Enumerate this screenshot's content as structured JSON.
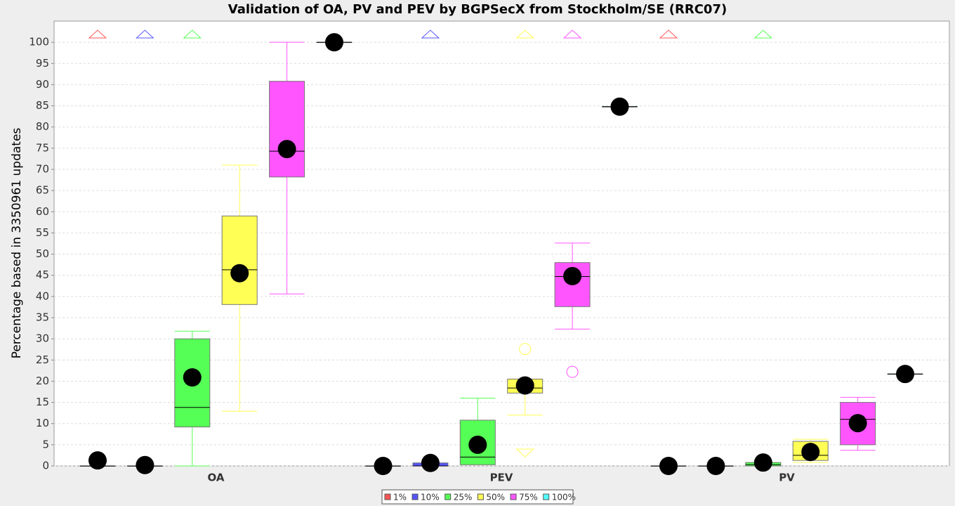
{
  "chart_data": {
    "type": "box",
    "title": "Validation of OA, PV and PEV by BGPSecX from Stockholm/SE (RRC07)",
    "y_label": "Percentage based in 3350961 updates",
    "categories": [
      "OA",
      "PEV",
      "PV"
    ],
    "ylim": [
      0,
      105
    ],
    "yticks": [
      0,
      5,
      10,
      15,
      20,
      25,
      30,
      35,
      40,
      45,
      50,
      55,
      60,
      65,
      70,
      75,
      80,
      85,
      90,
      95,
      100
    ],
    "grid": true,
    "legend": "bottom",
    "series": [
      {
        "name": "1%",
        "color": "#ff5555",
        "boxes": [
          {
            "min": 0,
            "q1": 0,
            "median": 0,
            "q3": 0,
            "max": 0,
            "mean": 1.3,
            "outliers": [],
            "farout": [
              "up"
            ]
          },
          {
            "min": 0,
            "q1": 0,
            "median": 0,
            "q3": 0,
            "max": 0,
            "mean": 0,
            "outliers": [],
            "farout": []
          },
          {
            "min": 0,
            "q1": 0,
            "median": 0,
            "q3": 0,
            "max": 0,
            "mean": 0,
            "outliers": [],
            "farout": [
              "up"
            ]
          }
        ]
      },
      {
        "name": "10%",
        "color": "#5555ff",
        "boxes": [
          {
            "min": 0,
            "q1": 0,
            "median": 0,
            "q3": 0,
            "max": 0,
            "mean": 0.2,
            "outliers": [],
            "farout": [
              "up"
            ]
          },
          {
            "min": 0,
            "q1": 0,
            "median": 0,
            "q3": 0.7,
            "max": 0.7,
            "mean": 0.7,
            "outliers": [],
            "farout": [
              "up"
            ]
          },
          {
            "min": 0,
            "q1": 0,
            "median": 0,
            "q3": 0,
            "max": 0,
            "mean": 0,
            "outliers": [],
            "farout": []
          }
        ]
      },
      {
        "name": "25%",
        "color": "#55ff55",
        "boxes": [
          {
            "min": 0,
            "q1": 9.2,
            "median": 13.8,
            "q3": 30,
            "max": 31.8,
            "mean": 20.9,
            "outliers": [],
            "farout": [
              "up"
            ]
          },
          {
            "min": 0.3,
            "q1": 0.3,
            "median": 2.1,
            "q3": 10.8,
            "max": 16,
            "mean": 5,
            "outliers": [],
            "farout": []
          },
          {
            "min": 0,
            "q1": 0,
            "median": 0.3,
            "q3": 0.8,
            "max": 0.8,
            "mean": 0.8,
            "outliers": [],
            "farout": [
              "up"
            ]
          }
        ]
      },
      {
        "name": "50%",
        "color": "#ffff55",
        "boxes": [
          {
            "min": 12.9,
            "q1": 38.1,
            "median": 46.3,
            "q3": 59,
            "max": 71,
            "mean": 45.5,
            "outliers": [],
            "farout": []
          },
          {
            "min": 12,
            "q1": 17.2,
            "median": 18.4,
            "q3": 20.5,
            "max": 20.5,
            "mean": 19,
            "outliers": [
              27.6
            ],
            "farout": [
              "up",
              "down"
            ]
          },
          {
            "min": 0.8,
            "q1": 1.3,
            "median": 2.5,
            "q3": 5.8,
            "max": 6.3,
            "mean": 3.3,
            "outliers": [],
            "farout": []
          }
        ]
      },
      {
        "name": "75%",
        "color": "#ff55ff",
        "boxes": [
          {
            "min": 40.6,
            "q1": 68.2,
            "median": 74.3,
            "q3": 90.8,
            "max": 100,
            "mean": 74.8,
            "outliers": [],
            "farout": []
          },
          {
            "min": 32.3,
            "q1": 37.6,
            "median": 44.7,
            "q3": 48,
            "max": 52.6,
            "mean": 44.8,
            "outliers": [
              22.2
            ],
            "farout": [
              "up"
            ]
          },
          {
            "min": 3.7,
            "q1": 5,
            "median": 11,
            "q3": 15,
            "max": 16.2,
            "mean": 10.1,
            "outliers": [],
            "farout": []
          }
        ]
      },
      {
        "name": "100%",
        "color": "#55ffff",
        "boxes": [
          {
            "min": 100,
            "q1": 100,
            "median": 100,
            "q3": 100,
            "max": 100,
            "mean": 100,
            "outliers": [],
            "farout": []
          },
          {
            "min": 84.8,
            "q1": 84.8,
            "median": 84.8,
            "q3": 84.8,
            "max": 84.8,
            "mean": 84.8,
            "outliers": [],
            "farout": []
          },
          {
            "min": 21.7,
            "q1": 21.7,
            "median": 21.7,
            "q3": 21.7,
            "max": 21.7,
            "mean": 21.7,
            "outliers": [],
            "farout": []
          }
        ]
      }
    ]
  }
}
